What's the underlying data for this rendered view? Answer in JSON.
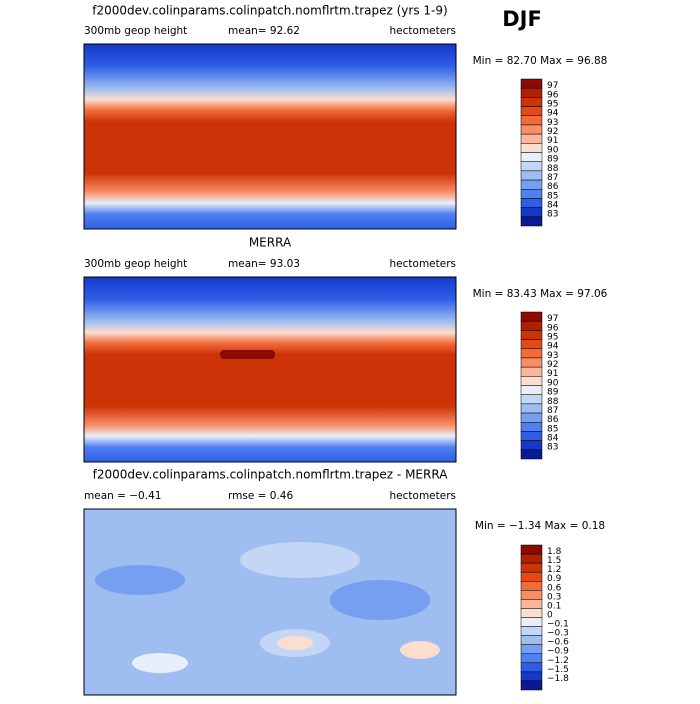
{
  "figure_title": "DJF",
  "colors": [
    "#8c0a00",
    "#b01f02",
    "#cc3408",
    "#e34a15",
    "#f26a38",
    "#f98e66",
    "#fcb59a",
    "#fdddce",
    "#e8eefa",
    "#c4d6f6",
    "#9ebdf0",
    "#779ff0",
    "#4f7ff0",
    "#2e5ee8",
    "#1538c8",
    "#0a1a96"
  ],
  "panels": [
    {
      "title": "f2000dev.colinparams.colinpatch.nomflrtm.trapez (yrs 1-9)",
      "left_label": "300mb geop height",
      "center_label": "mean=  92.62",
      "right_label": "hectometers",
      "minmax": "Min =  82.70 Max =  96.88",
      "levels": [
        "97",
        "96",
        "95",
        "94",
        "93",
        "92",
        "91",
        "90",
        "89",
        "88",
        "87",
        "86",
        "85",
        "84",
        "83"
      ]
    },
    {
      "title": "MERRA",
      "left_label": "300mb geop height",
      "center_label": "mean=  93.03",
      "right_label": "hectometers",
      "minmax": "Min =  83.43 Max =  97.06",
      "levels": [
        "97",
        "96",
        "95",
        "94",
        "93",
        "92",
        "91",
        "90",
        "89",
        "88",
        "87",
        "86",
        "85",
        "84",
        "83"
      ]
    },
    {
      "title": "f2000dev.colinparams.colinpatch.nomflrtm.trapez - MERRA",
      "left_label": "mean =  −0.41",
      "center_label": "rmse =   0.46",
      "right_label": "hectometers",
      "minmax": "Min =  −1.34 Max =   0.18",
      "levels": [
        "1.8",
        "1.5",
        "1.2",
        "0.9",
        "0.6",
        "0.3",
        "0.1",
        "0",
        "−0.1",
        "−0.3",
        "−0.6",
        "−0.9",
        "−1.2",
        "−1.5",
        "−1.8"
      ]
    }
  ]
}
